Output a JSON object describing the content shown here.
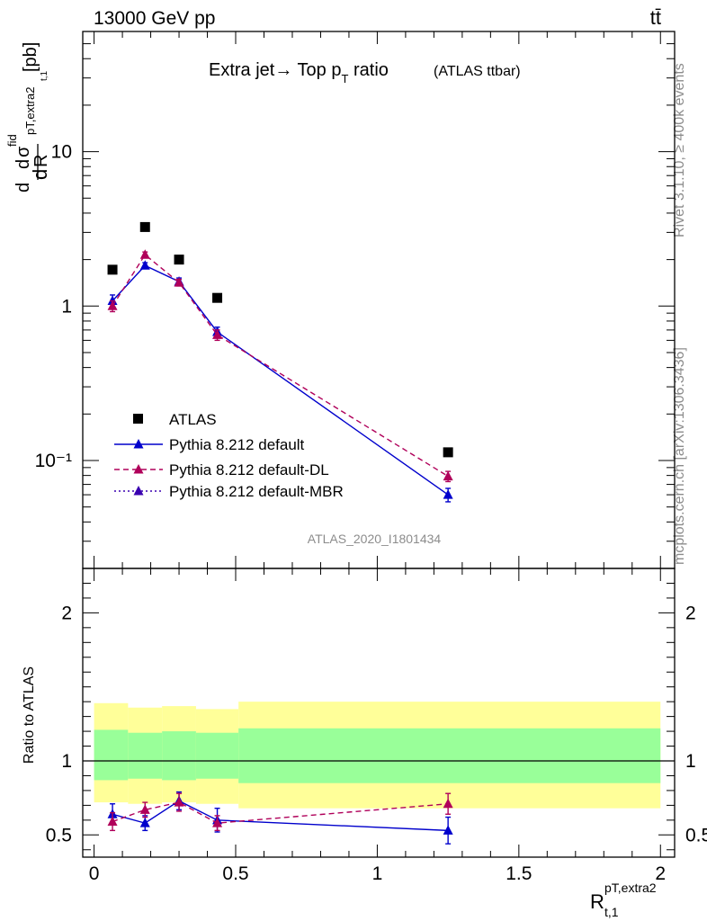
{
  "header": {
    "energy_label": "13000 GeV pp",
    "process_label": "tt̄",
    "title_main": "Extra jet→ Top p",
    "title_sub": "T",
    "title_tail": " ratio",
    "title_note": "(ATLAS ttbar)",
    "side_rivet": "Rivet 3.1.10, ≥ 400k events",
    "side_mcplots": "mcplots.cern.ch [arXiv:1306.3436]",
    "analysis_id": "ATLAS_2020_I1801434"
  },
  "axes": {
    "ylabel_top": "dσ/dR [pb]",
    "ylabel_ratio": "Ratio to ATLAS",
    "xlabel": "R",
    "xlabel_sup": "pT,extra2",
    "xlabel_sub": "t,1"
  },
  "chart_data": [
    {
      "type": "scatter",
      "panel": "main",
      "yscale": "log",
      "xlim": [
        -0.04,
        2.05
      ],
      "ylim": [
        0.02,
        60
      ],
      "yticklabels": [
        "10",
        "1",
        "10⁻¹"
      ],
      "xticklabels": [
        "0",
        "0.5",
        "1",
        "1.5",
        "2"
      ],
      "x": [
        0.065,
        0.18,
        0.3,
        0.435,
        1.25
      ],
      "series": [
        {
          "name": "ATLAS",
          "color": "#000000",
          "marker": "square",
          "line": "none",
          "values": [
            1.72,
            3.25,
            2.0,
            1.13,
            0.113
          ]
        },
        {
          "name": "Pythia 8.212 default",
          "color": "#0000cc",
          "marker": "triangle",
          "line": "solid",
          "values": [
            1.08,
            1.83,
            1.44,
            0.68,
            0.06
          ],
          "errors": [
            0.1,
            0.08,
            0.08,
            0.05,
            0.006
          ]
        },
        {
          "name": "Pythia 8.212 default-DL",
          "color": "#b0005a",
          "marker": "triangle",
          "line": "dashed",
          "values": [
            1.0,
            2.15,
            1.42,
            0.65,
            0.079
          ],
          "errors": [
            0.08,
            0.09,
            0.07,
            0.05,
            0.006
          ]
        },
        {
          "name": "Pythia 8.212 default-MBR",
          "color": "#3a00b0",
          "marker": "triangle",
          "line": "dotted",
          "values": [],
          "errors": []
        }
      ]
    },
    {
      "type": "scatter",
      "panel": "ratio",
      "xlim": [
        -0.04,
        2.05
      ],
      "ylim": [
        0.35,
        2.3
      ],
      "yticklabels": [
        "0.5",
        "1",
        "2"
      ],
      "xticklabels": [
        "0",
        "0.5",
        "1",
        "1.5",
        "2"
      ],
      "reference_line": 1,
      "bands": {
        "edges": [
          0.0,
          0.12,
          0.24,
          0.36,
          0.51,
          2.0
        ],
        "outer_hi": [
          1.39,
          1.36,
          1.37,
          1.35,
          1.4
        ],
        "outer_lo": [
          0.72,
          0.71,
          0.72,
          0.71,
          0.68
        ],
        "inner_hi": [
          1.21,
          1.19,
          1.2,
          1.19,
          1.22
        ],
        "inner_lo": [
          0.87,
          0.88,
          0.87,
          0.88,
          0.85
        ],
        "outer_color": "#ffff99",
        "inner_color": "#99ff99"
      },
      "x": [
        0.065,
        0.18,
        0.3,
        0.435,
        1.25
      ],
      "series": [
        {
          "name": "Pythia 8.212 default",
          "color": "#0000cc",
          "marker": "triangle",
          "line": "solid",
          "values": [
            0.64,
            0.58,
            0.73,
            0.6,
            0.53
          ],
          "errors": [
            0.07,
            0.05,
            0.06,
            0.08,
            0.09
          ]
        },
        {
          "name": "Pythia 8.212 default-DL",
          "color": "#b0005a",
          "marker": "triangle",
          "line": "dashed",
          "values": [
            0.59,
            0.67,
            0.72,
            0.58,
            0.71
          ],
          "errors": [
            0.06,
            0.05,
            0.06,
            0.05,
            0.07
          ]
        }
      ]
    }
  ]
}
